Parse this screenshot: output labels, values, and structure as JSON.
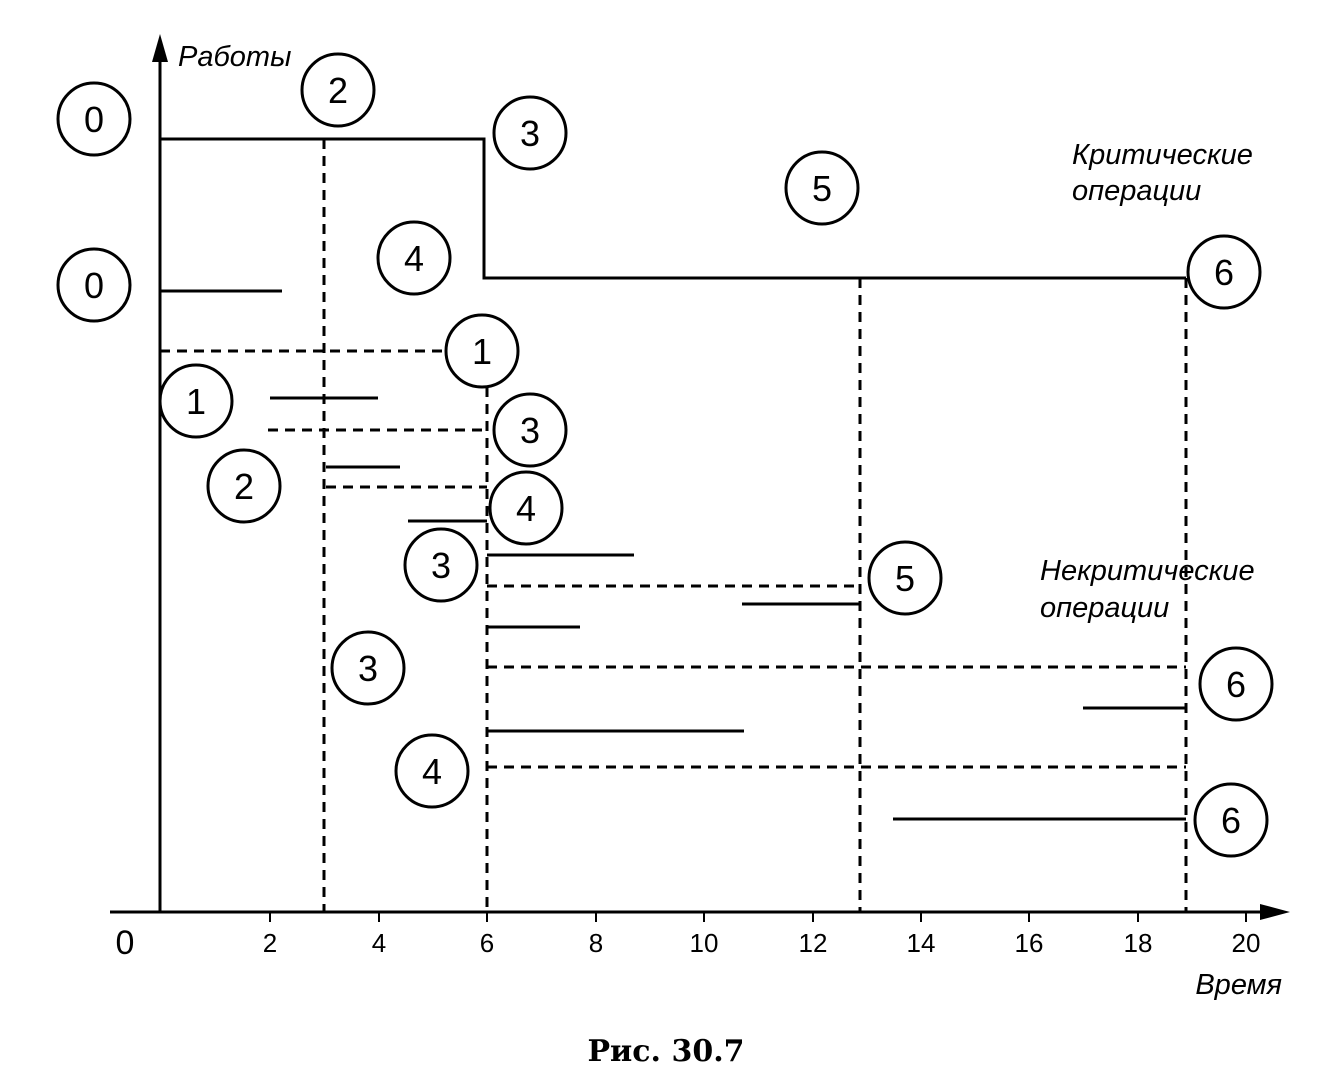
{
  "axes": {
    "y_label": "Работы",
    "x_label": "Время",
    "origin_label": "0",
    "x_ticks": [
      "2",
      "4",
      "6",
      "8",
      "10",
      "12",
      "14",
      "16",
      "18",
      "20"
    ]
  },
  "labels": {
    "critical": [
      "Критические",
      "операции"
    ],
    "noncritical": [
      "Некритические",
      "операции"
    ]
  },
  "caption": "Рис. 30.7",
  "nodes": [
    {
      "id": "n0a",
      "label": "0"
    },
    {
      "id": "n2a",
      "label": "2"
    },
    {
      "id": "n3a",
      "label": "3"
    },
    {
      "id": "n5a",
      "label": "5"
    },
    {
      "id": "n4a",
      "label": "4"
    },
    {
      "id": "n0b",
      "label": "0"
    },
    {
      "id": "n6a",
      "label": "6"
    },
    {
      "id": "n1a",
      "label": "1"
    },
    {
      "id": "n1b",
      "label": "1"
    },
    {
      "id": "n3b",
      "label": "3"
    },
    {
      "id": "n2b",
      "label": "2"
    },
    {
      "id": "n4b",
      "label": "4"
    },
    {
      "id": "n3c",
      "label": "3"
    },
    {
      "id": "n5b",
      "label": "5"
    },
    {
      "id": "n3d",
      "label": "3"
    },
    {
      "id": "n6b",
      "label": "6"
    },
    {
      "id": "n4c",
      "label": "4"
    },
    {
      "id": "n6c",
      "label": "6"
    }
  ]
}
